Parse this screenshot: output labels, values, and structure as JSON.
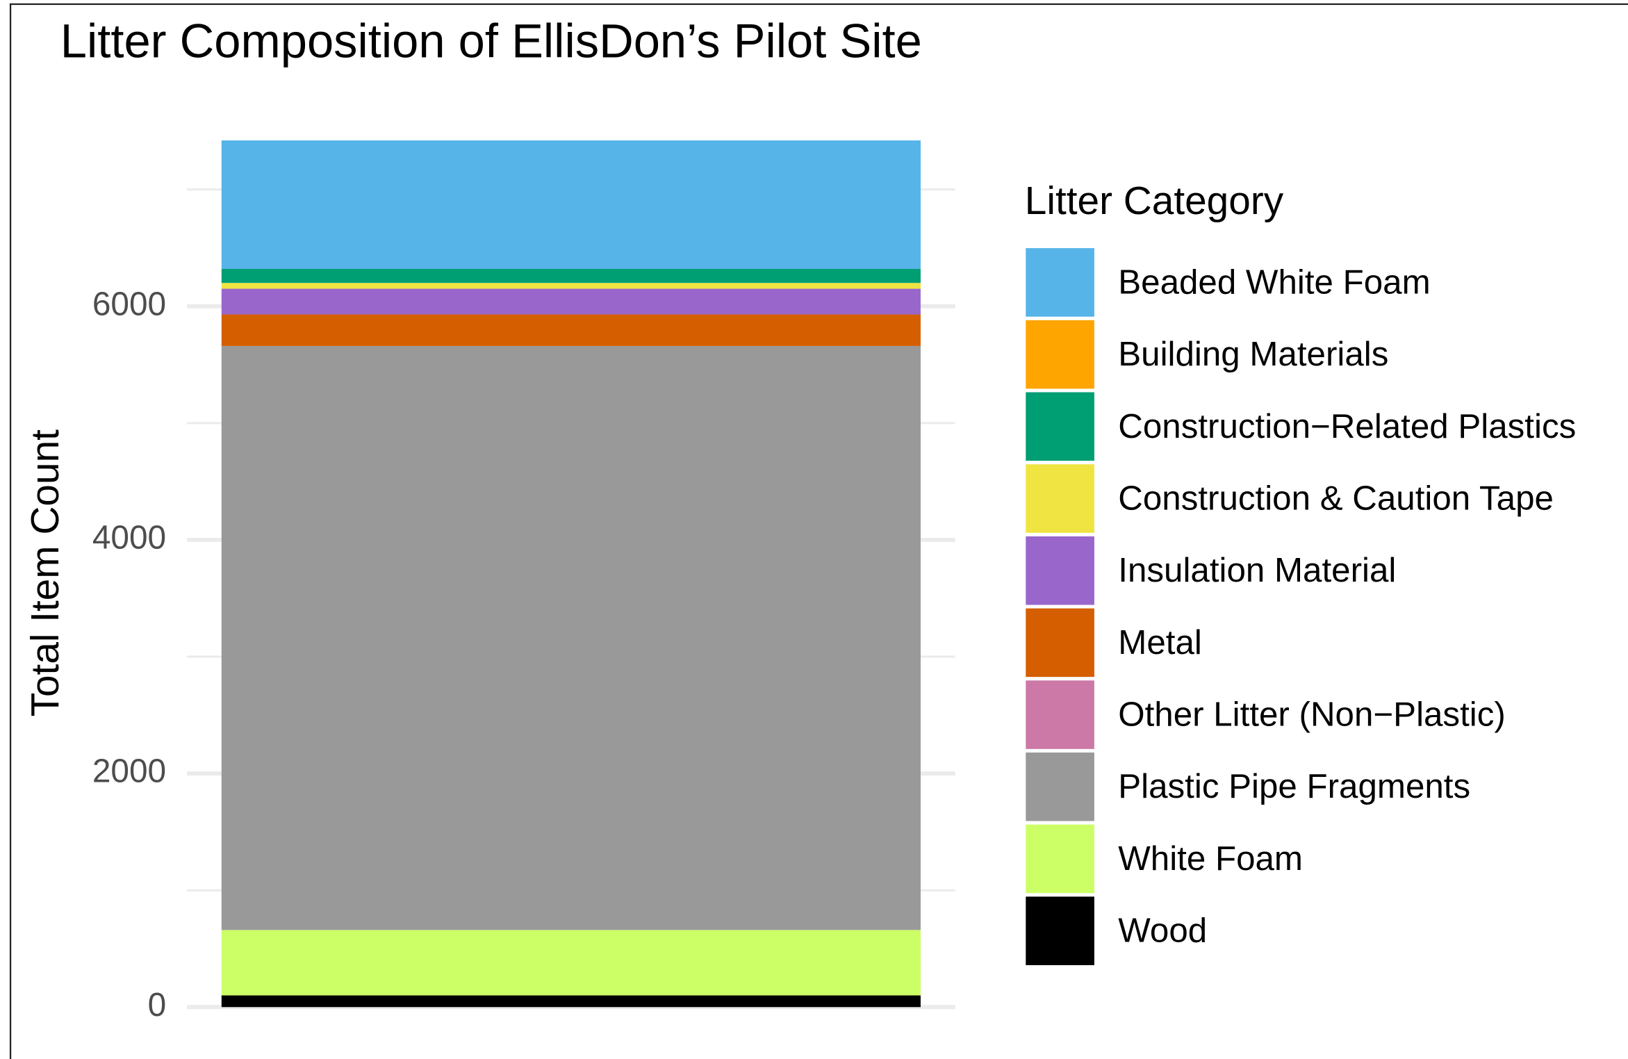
{
  "chart_data": {
    "type": "stacked_bar",
    "title": "Litter Composition of  EllisDon’s Pilot Site",
    "ylabel": "Total Item Count",
    "legend_title": "Litter Category",
    "legend_position": "right",
    "categories": [
      null
    ],
    "series": [
      {
        "name": "Beaded White Foam",
        "color": "#56B4E9",
        "values": [
          1100
        ]
      },
      {
        "name": "Building Materials",
        "color": "#FFA500",
        "values": [
          0
        ]
      },
      {
        "name": "Construction−Related Plastics",
        "color": "#009E73",
        "values": [
          120
        ]
      },
      {
        "name": "Construction & Caution Tape",
        "color": "#F0E442",
        "values": [
          50
        ]
      },
      {
        "name": "Insulation Material",
        "color": "#9966CC",
        "values": [
          220
        ]
      },
      {
        "name": "Metal",
        "color": "#D55E00",
        "values": [
          270
        ]
      },
      {
        "name": "Other Litter (Non−Plastic)",
        "color": "#CC79A7",
        "values": [
          0
        ]
      },
      {
        "name": "Plastic Pipe Fragments",
        "color": "#999999",
        "values": [
          5000
        ]
      },
      {
        "name": "White Foam",
        "color": "#CCFF66",
        "values": [
          560
        ]
      },
      {
        "name": "Wood",
        "color": "#000000",
        "values": [
          100
        ]
      }
    ],
    "ylim": [
      0,
      7500
    ],
    "yticks": [
      0,
      2000,
      4000,
      6000
    ],
    "minor_yticks": [
      1000,
      3000,
      5000,
      7000
    ],
    "grid": true
  }
}
